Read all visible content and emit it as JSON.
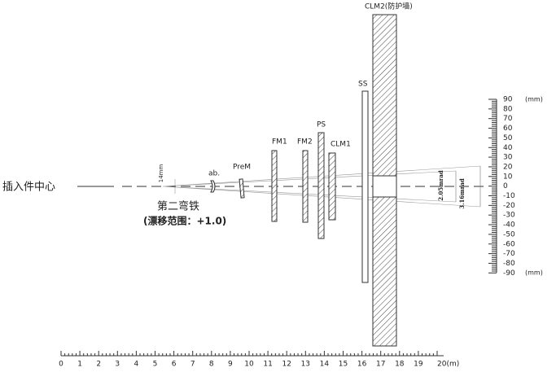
{
  "source_label": "插入件中心",
  "bend": {
    "name": "第二弯铁",
    "range": "(漂移范围：+1.0)",
    "aperture": "14mm"
  },
  "elements": [
    {
      "label": "ab."
    },
    {
      "label": "PreM"
    },
    {
      "label": "FM1"
    },
    {
      "label": "FM2"
    },
    {
      "label": "PS"
    },
    {
      "label": "CLM1"
    },
    {
      "label": "SS"
    },
    {
      "label": "CLM2(防护墙)"
    }
  ],
  "divergence": [
    "2.05mrad",
    "3.16mrad"
  ],
  "x_axis": {
    "labels": [
      "0",
      "1",
      "2",
      "3",
      "4",
      "5",
      "6",
      "7",
      "8",
      "9",
      "10",
      "11",
      "12",
      "13",
      "14",
      "15",
      "16",
      "17",
      "18",
      "19",
      "20(m)"
    ]
  },
  "ruler": {
    "unit": "(mm)",
    "labels": [
      "90",
      "80",
      "70",
      "60",
      "50",
      "40",
      "30",
      "20",
      "10",
      "0",
      "-10",
      "-20",
      "-30",
      "-40",
      "-50",
      "-60",
      "-70",
      "-80",
      "-90"
    ]
  }
}
